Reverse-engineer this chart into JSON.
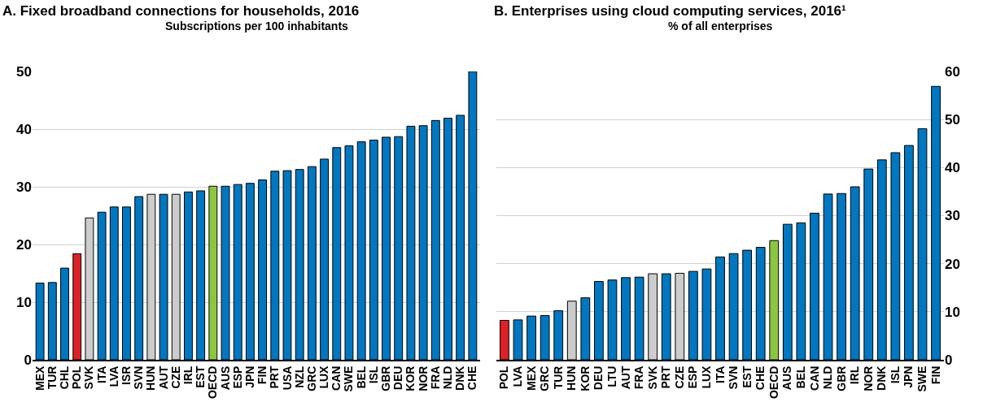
{
  "chart_data": [
    {
      "type": "bar",
      "title": "A. Fixed broadband connections for households, 2016",
      "subtitle": "Subscriptions per 100 inhabitants",
      "categories": [
        "MEX",
        "TUR",
        "CHL",
        "POL",
        "SVK",
        "ITA",
        "LVA",
        "ISR",
        "SVN",
        "HUN",
        "AUT",
        "CZE",
        "IRL",
        "EST",
        "OECD",
        "AUS",
        "ESP",
        "JPN",
        "FIN",
        "PRT",
        "USA",
        "NZL",
        "GRC",
        "LUX",
        "CAN",
        "SWE",
        "BEL",
        "ISL",
        "GBR",
        "DEU",
        "KOR",
        "NOR",
        "FRA",
        "NLD",
        "DNK",
        "CHE"
      ],
      "values": [
        13.3,
        13.4,
        15.9,
        18.4,
        24.6,
        25.6,
        26.5,
        26.5,
        28.3,
        28.7,
        28.7,
        28.7,
        29.1,
        29.3,
        30.1,
        30.1,
        30.4,
        30.6,
        31.2,
        32.7,
        32.8,
        33.0,
        33.5,
        34.8,
        36.8,
        37.1,
        37.8,
        38.1,
        38.6,
        38.7,
        40.5,
        40.6,
        41.5,
        41.9,
        42.4,
        50
      ],
      "colors": [
        "#0077c0",
        "#0077c0",
        "#0077c0",
        "#dc2127",
        "#cccccc",
        "#0077c0",
        "#0077c0",
        "#0077c0",
        "#0077c0",
        "#cccccc",
        "#0077c0",
        "#cccccc",
        "#0077c0",
        "#0077c0",
        "#8cc641",
        "#0077c0",
        "#0077c0",
        "#0077c0",
        "#0077c0",
        "#0077c0",
        "#0077c0",
        "#0077c0",
        "#0077c0",
        "#0077c0",
        "#0077c0",
        "#0077c0",
        "#0077c0",
        "#0077c0",
        "#0077c0",
        "#0077c0",
        "#0077c0",
        "#0077c0",
        "#0077c0",
        "#0077c0",
        "#0077c0",
        "#0077c0"
      ],
      "ylim": [
        0,
        50
      ],
      "yticks": [
        0,
        10,
        20,
        30,
        40,
        50
      ],
      "grid": "y"
    },
    {
      "type": "bar",
      "title": "B. Enterprises using cloud computing services, 2016¹",
      "subtitle": "% of all enterprises",
      "categories": [
        "POL",
        "LVA",
        "MEX",
        "GRC",
        "TUR",
        "HUN",
        "KOR",
        "DEU",
        "LTU",
        "AUT",
        "FRA",
        "SVK",
        "PRT",
        "CZE",
        "ESP",
        "LUX",
        "ITA",
        "SVN",
        "EST",
        "CHE",
        "OECD",
        "AUS",
        "BEL",
        "CAN",
        "NLD",
        "GBR",
        "IRL",
        "NOR",
        "DNK",
        "ISL",
        "JPN",
        "SWE",
        "FIN"
      ],
      "values": [
        8.2,
        8.3,
        9.1,
        9.2,
        10.2,
        12.2,
        12.9,
        16.3,
        16.6,
        17.1,
        17.2,
        17.9,
        17.9,
        18.0,
        18.4,
        18.9,
        21.4,
        22.1,
        22.8,
        23.4,
        24.8,
        28.2,
        28.5,
        30.5,
        34.5,
        34.6,
        36.0,
        39.7,
        41.6,
        43.1,
        44.6,
        48.1,
        56.9
      ],
      "colors": [
        "#dc2127",
        "#0077c0",
        "#0077c0",
        "#0077c0",
        "#0077c0",
        "#cccccc",
        "#0077c0",
        "#0077c0",
        "#0077c0",
        "#0077c0",
        "#0077c0",
        "#cccccc",
        "#0077c0",
        "#cccccc",
        "#0077c0",
        "#0077c0",
        "#0077c0",
        "#0077c0",
        "#0077c0",
        "#0077c0",
        "#8cc641",
        "#0077c0",
        "#0077c0",
        "#0077c0",
        "#0077c0",
        "#0077c0",
        "#0077c0",
        "#0077c0",
        "#0077c0",
        "#0077c0",
        "#0077c0",
        "#0077c0",
        "#0077c0"
      ],
      "ylim": [
        0,
        60
      ],
      "yticks": [
        0,
        10,
        20,
        30,
        40,
        50,
        60
      ],
      "grid": "y"
    }
  ]
}
